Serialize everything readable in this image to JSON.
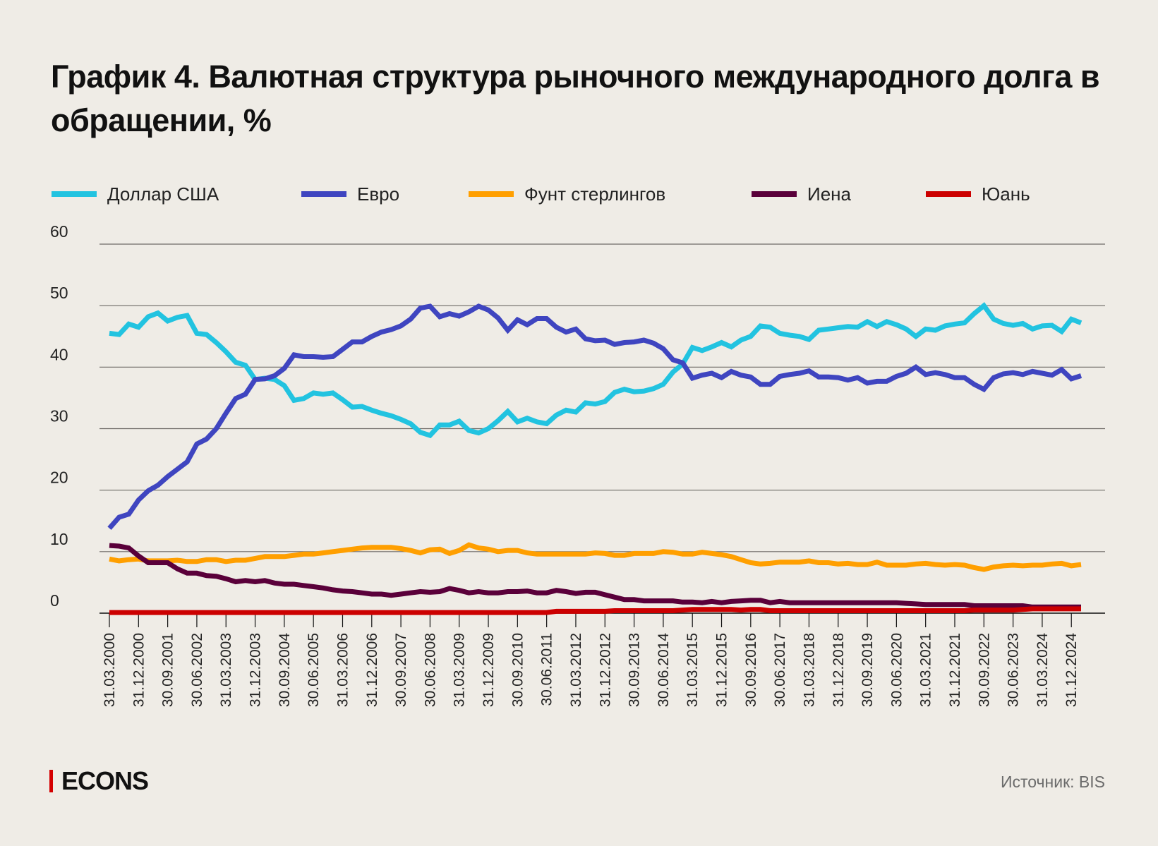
{
  "title": "График 4. Валютная структура рыночного международного долга в обращении, %",
  "source": "Источник: BIS",
  "logo": "ECONS",
  "chart_data": {
    "type": "line",
    "title": "График 4. Валютная структура рыночного международного долга в обращении, %",
    "ylim": [
      0,
      60
    ],
    "yticks": [
      0,
      10,
      20,
      30,
      40,
      50,
      60
    ],
    "grid": true,
    "legend_position": "top",
    "x_tick_every": 3,
    "x": [
      "31.03.2000",
      "30.06.2000",
      "30.09.2000",
      "31.12.2000",
      "31.03.2001",
      "30.06.2001",
      "30.09.2001",
      "31.12.2001",
      "31.03.2002",
      "30.06.2002",
      "30.09.2002",
      "31.12.2002",
      "31.03.2003",
      "30.06.2003",
      "30.09.2003",
      "31.12.2003",
      "31.03.2004",
      "30.06.2004",
      "30.09.2004",
      "31.12.2004",
      "31.03.2005",
      "30.06.2005",
      "30.09.2005",
      "31.12.2005",
      "31.03.2006",
      "30.06.2006",
      "30.09.2006",
      "31.12.2006",
      "31.03.2007",
      "30.06.2007",
      "30.09.2007",
      "31.12.2007",
      "31.03.2008",
      "30.06.2008",
      "30.09.2008",
      "31.12.2008",
      "31.03.2009",
      "30.06.2009",
      "30.09.2009",
      "31.12.2009",
      "31.03.2010",
      "30.06.2010",
      "30.09.2010",
      "31.12.2010",
      "31.03.2011",
      "30.06.2011",
      "30.09.2011",
      "31.12.2011",
      "31.03.2012",
      "30.06.2012",
      "30.09.2012",
      "31.12.2012",
      "31.03.2013",
      "30.06.2013",
      "30.09.2013",
      "31.12.2013",
      "31.03.2014",
      "30.06.2014",
      "30.09.2014",
      "31.12.2014",
      "31.03.2015",
      "30.06.2015",
      "30.09.2015",
      "31.12.2015",
      "31.03.2016",
      "30.06.2016",
      "30.09.2016",
      "31.12.2016",
      "31.03.2017",
      "30.06.2017",
      "30.09.2017",
      "31.12.2017",
      "31.03.2018",
      "30.06.2018",
      "30.09.2018",
      "31.12.2018",
      "31.03.2019",
      "30.06.2019",
      "30.09.2019",
      "31.12.2019",
      "31.03.2020",
      "30.06.2020",
      "30.09.2020",
      "31.12.2020",
      "31.03.2021",
      "30.06.2021",
      "30.09.2021",
      "31.12.2021",
      "31.03.2022",
      "30.06.2022",
      "30.09.2022",
      "31.12.2022",
      "31.03.2023",
      "30.06.2023",
      "30.09.2023",
      "31.12.2023",
      "31.03.2024",
      "30.06.2024",
      "30.09.2024",
      "31.12.2024",
      "31.03.2025"
    ],
    "series": [
      {
        "name": "Доллар США",
        "color": "#22c3e0",
        "values": [
          45.5,
          45.3,
          47,
          46.5,
          48.2,
          48.8,
          47.5,
          48.1,
          48.4,
          45.5,
          45.3,
          44,
          42.5,
          40.8,
          40.3,
          38,
          38.2,
          38,
          37,
          34.6,
          34.9,
          35.8,
          35.6,
          35.8,
          34.7,
          33.5,
          33.6,
          33,
          32.5,
          32.1,
          31.5,
          30.8,
          29.4,
          28.9,
          30.6,
          30.6,
          31.2,
          29.7,
          29.3,
          30,
          31.3,
          32.8,
          31.1,
          31.7,
          31.1,
          30.8,
          32.2,
          33,
          32.7,
          34.2,
          34,
          34.4,
          35.9,
          36.4,
          36,
          36.1,
          36.5,
          37.2,
          39.2,
          40.5,
          43.2,
          42.7,
          43.3,
          44,
          43.3,
          44.4,
          45,
          46.7,
          46.5,
          45.5,
          45.2,
          45,
          44.5,
          46,
          46.2,
          46.4,
          46.6,
          46.5,
          47.4,
          46.6,
          47.4,
          46.9,
          46.2,
          45,
          46.2,
          46,
          46.7,
          47,
          47.2,
          48.7,
          50,
          47.8,
          47.1,
          46.8,
          47.1,
          46.2,
          46.7,
          46.8,
          45.8,
          47.8,
          47.2
        ]
      },
      {
        "name": "Евро",
        "color": "#3f45c0",
        "values": [
          13.8,
          15.6,
          16.1,
          18.4,
          19.9,
          20.8,
          22.2,
          23.4,
          24.6,
          27.5,
          28.3,
          30,
          32.5,
          34.9,
          35.6,
          38,
          38.1,
          38.6,
          39.8,
          42,
          41.7,
          41.7,
          41.6,
          41.7,
          42.9,
          44.1,
          44.1,
          45,
          45.7,
          46.1,
          46.7,
          47.8,
          49.6,
          49.9,
          48.2,
          48.7,
          48.3,
          49,
          49.9,
          49.3,
          48,
          46,
          47.7,
          46.9,
          47.9,
          47.9,
          46.5,
          45.7,
          46.2,
          44.6,
          44.3,
          44.4,
          43.7,
          44,
          44.1,
          44.4,
          43.9,
          43,
          41.2,
          40.7,
          38.2,
          38.7,
          39,
          38.3,
          39.3,
          38.7,
          38.4,
          37.2,
          37.2,
          38.5,
          38.8,
          39,
          39.4,
          38.4,
          38.4,
          38.3,
          37.9,
          38.3,
          37.4,
          37.7,
          37.7,
          38.5,
          39,
          40,
          38.8,
          39.1,
          38.8,
          38.3,
          38.3,
          37.2,
          36.4,
          38.3,
          38.9,
          39.1,
          38.8,
          39.3,
          39,
          38.7,
          39.6,
          38.1,
          38.6
        ]
      },
      {
        "name": "Фунт стерлингов",
        "color": "#ff9f00",
        "values": [
          8.8,
          8.5,
          8.7,
          8.8,
          8.5,
          8.5,
          8.5,
          8.6,
          8.4,
          8.4,
          8.7,
          8.7,
          8.4,
          8.6,
          8.6,
          8.9,
          9.2,
          9.2,
          9.2,
          9.4,
          9.6,
          9.6,
          9.8,
          10,
          10.2,
          10.4,
          10.6,
          10.7,
          10.7,
          10.7,
          10.5,
          10.2,
          9.8,
          10.3,
          10.4,
          9.7,
          10.2,
          11.1,
          10.6,
          10.4,
          10,
          10.2,
          10.2,
          9.8,
          9.6,
          9.6,
          9.6,
          9.6,
          9.6,
          9.6,
          9.8,
          9.7,
          9.4,
          9.4,
          9.7,
          9.7,
          9.7,
          10,
          9.9,
          9.6,
          9.6,
          9.9,
          9.7,
          9.5,
          9.2,
          8.7,
          8.2,
          8,
          8.1,
          8.3,
          8.3,
          8.3,
          8.5,
          8.2,
          8.2,
          8,
          8.1,
          7.9,
          7.9,
          8.3,
          7.8,
          7.8,
          7.8,
          8,
          8.1,
          7.9,
          7.8,
          7.9,
          7.8,
          7.4,
          7.1,
          7.5,
          7.7,
          7.8,
          7.7,
          7.8,
          7.8,
          8,
          8.1,
          7.7,
          7.9
        ]
      },
      {
        "name": "Иена",
        "color": "#5a003a",
        "values": [
          11,
          10.9,
          10.6,
          9.3,
          8.2,
          8.2,
          8.2,
          7.2,
          6.5,
          6.5,
          6.1,
          6,
          5.6,
          5.1,
          5.3,
          5.1,
          5.3,
          4.9,
          4.7,
          4.7,
          4.5,
          4.3,
          4.1,
          3.8,
          3.6,
          3.5,
          3.3,
          3.1,
          3.1,
          2.9,
          3.1,
          3.3,
          3.5,
          3.4,
          3.5,
          4,
          3.7,
          3.3,
          3.5,
          3.3,
          3.3,
          3.5,
          3.5,
          3.6,
          3.3,
          3.3,
          3.7,
          3.5,
          3.2,
          3.4,
          3.4,
          3,
          2.6,
          2.2,
          2.2,
          2,
          2,
          2,
          2,
          1.8,
          1.8,
          1.7,
          1.9,
          1.7,
          1.9,
          2,
          2.1,
          2.1,
          1.7,
          1.9,
          1.7,
          1.7,
          1.7,
          1.7,
          1.7,
          1.7,
          1.7,
          1.7,
          1.7,
          1.7,
          1.7,
          1.7,
          1.6,
          1.5,
          1.4,
          1.4,
          1.4,
          1.4,
          1.4,
          1.2,
          1.2,
          1.2,
          1.2,
          1.2,
          1.2,
          1,
          1,
          1,
          1,
          1,
          1
        ]
      },
      {
        "name": "Юань",
        "color": "#cc0000",
        "values": [
          0.1,
          0.1,
          0.1,
          0.1,
          0.1,
          0.1,
          0.1,
          0.1,
          0.1,
          0.1,
          0.1,
          0.1,
          0.1,
          0.1,
          0.1,
          0.1,
          0.1,
          0.1,
          0.1,
          0.1,
          0.1,
          0.1,
          0.1,
          0.1,
          0.1,
          0.1,
          0.1,
          0.1,
          0.1,
          0.1,
          0.1,
          0.1,
          0.1,
          0.1,
          0.1,
          0.1,
          0.1,
          0.1,
          0.1,
          0.1,
          0.1,
          0.1,
          0.1,
          0.1,
          0.1,
          0.1,
          0.3,
          0.3,
          0.3,
          0.3,
          0.3,
          0.3,
          0.4,
          0.4,
          0.4,
          0.4,
          0.4,
          0.4,
          0.4,
          0.5,
          0.6,
          0.6,
          0.6,
          0.6,
          0.6,
          0.5,
          0.6,
          0.6,
          0.4,
          0.4,
          0.4,
          0.4,
          0.4,
          0.4,
          0.4,
          0.4,
          0.4,
          0.4,
          0.4,
          0.4,
          0.4,
          0.4,
          0.4,
          0.4,
          0.4,
          0.4,
          0.4,
          0.4,
          0.4,
          0.5,
          0.5,
          0.5,
          0.5,
          0.5,
          0.6,
          0.7,
          0.7,
          0.7,
          0.7,
          0.7,
          0.7
        ]
      }
    ]
  }
}
